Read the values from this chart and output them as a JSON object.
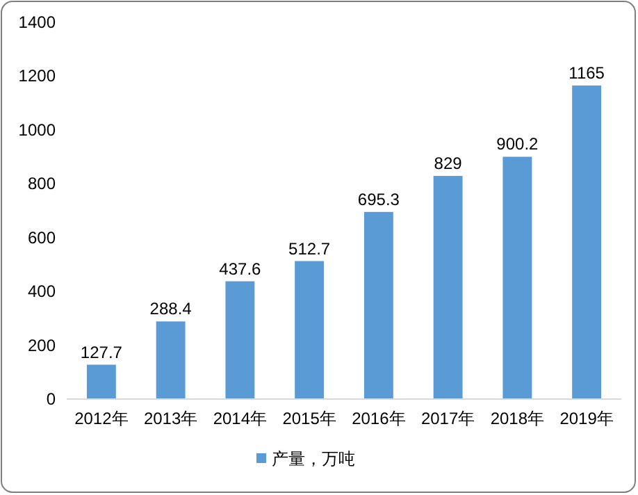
{
  "chart_data": {
    "type": "bar",
    "categories": [
      "2012年",
      "2013年",
      "2014年",
      "2015年",
      "2016年",
      "2017年",
      "2018年",
      "2019年"
    ],
    "series": [
      {
        "name": "产量，万吨",
        "color": "#5b9bd5",
        "values": [
          127.7,
          288.4,
          437.6,
          512.7,
          695.3,
          829,
          900.2,
          1165
        ]
      }
    ],
    "ylim": [
      0,
      1400
    ],
    "yticks": [
      0,
      200,
      400,
      600,
      800,
      1000,
      1200,
      1400
    ],
    "data_labels": true,
    "legend": "bottom"
  }
}
